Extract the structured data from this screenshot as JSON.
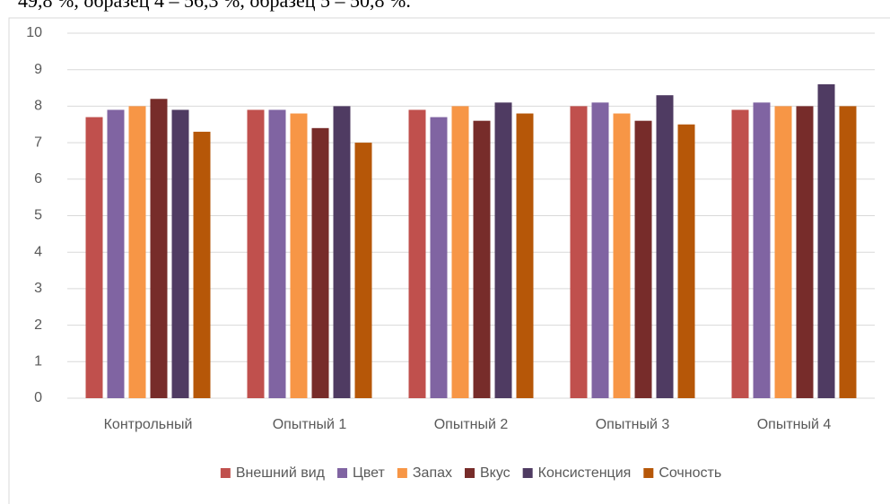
{
  "chart_data": {
    "type": "bar",
    "annotation": "49,8 %, образец 4 – 56,3 %, образец 5 – 50,8 %.",
    "categories": [
      "Контрольный",
      "Опытный 1",
      "Опытный 2",
      "Опытный 3",
      "Опытный 4"
    ],
    "series": [
      {
        "name": "Внешний вид",
        "color": "#c0504d",
        "values": [
          7.7,
          7.9,
          7.9,
          8.0,
          7.9
        ]
      },
      {
        "name": "Цвет",
        "color": "#8064a2",
        "values": [
          7.9,
          7.9,
          7.7,
          8.1,
          8.1
        ]
      },
      {
        "name": "Запах",
        "color": "#f79646",
        "values": [
          8.0,
          7.8,
          8.0,
          7.8,
          8.0
        ]
      },
      {
        "name": "Вкус",
        "color": "#772c2a",
        "values": [
          8.2,
          7.4,
          7.6,
          7.6,
          8.0
        ]
      },
      {
        "name": "Консистенция",
        "color": "#4f3b62",
        "values": [
          7.9,
          8.0,
          8.1,
          8.3,
          8.6
        ]
      },
      {
        "name": "Сочность",
        "color": "#b65708",
        "values": [
          7.3,
          7.0,
          7.8,
          7.5,
          8.0
        ]
      }
    ],
    "ylim": [
      0,
      10
    ],
    "yticks": [
      0,
      1,
      2,
      3,
      4,
      5,
      6,
      7,
      8,
      9,
      10
    ],
    "grid": true,
    "legend": "bottom"
  }
}
